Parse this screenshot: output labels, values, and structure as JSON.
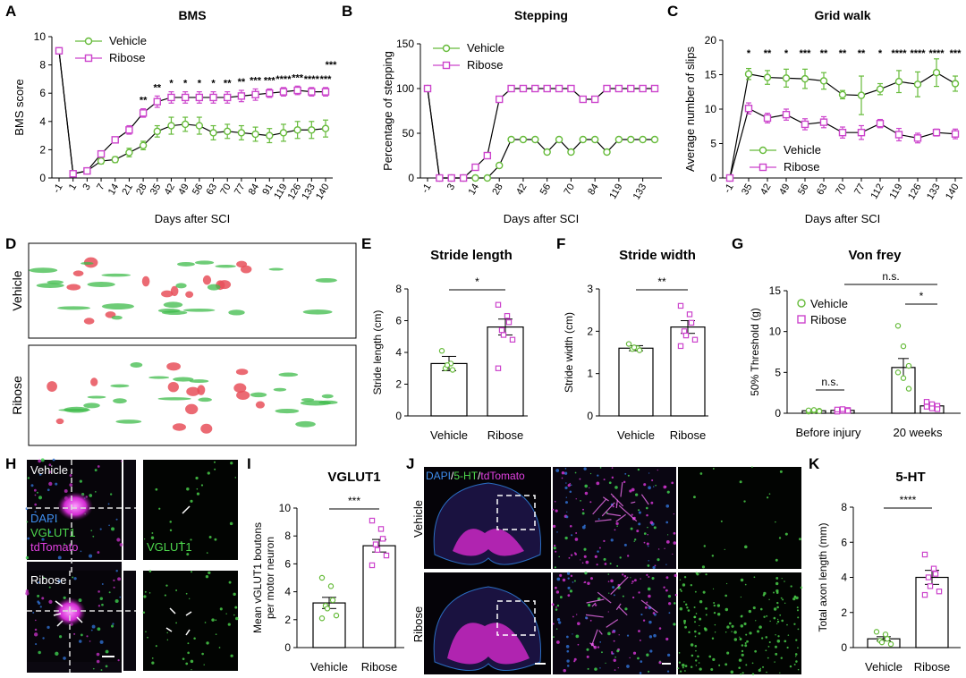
{
  "colors": {
    "vehicle": "#66bb3a",
    "ribose": "#cc44cc",
    "axis": "#000000",
    "dapi": "#2f7ed8",
    "vglut": "#4ed84e",
    "tdtomato": "#e040e0",
    "sht": "#4ed84e"
  },
  "panels": {
    "A": "A",
    "B": "B",
    "C": "C",
    "D": "D",
    "E": "E",
    "F": "F",
    "G": "G",
    "H": "H",
    "I": "I",
    "J": "J",
    "K": "K"
  },
  "chart_data": [
    {
      "id": "A",
      "type": "line",
      "title": "BMS",
      "xlabel": "Days after SCI",
      "ylabel": "BMS score",
      "ylim": [
        0,
        10
      ],
      "yticks": [
        "0",
        "2",
        "4",
        "6",
        "8",
        "10"
      ],
      "categories": [
        "-1",
        "1",
        "3",
        "7",
        "14",
        "21",
        "28",
        "35",
        "42",
        "49",
        "56",
        "63",
        "70",
        "77",
        "84",
        "91",
        "119",
        "126",
        "133",
        "140"
      ],
      "series": [
        {
          "name": "Vehicle",
          "values": [
            9,
            0.3,
            0.5,
            1.2,
            1.3,
            1.8,
            2.3,
            3.3,
            3.7,
            3.8,
            3.7,
            3.2,
            3.3,
            3.2,
            3.1,
            3.0,
            3.2,
            3.4,
            3.4,
            3.5
          ],
          "err": [
            0,
            0.1,
            0.1,
            0.2,
            0.2,
            0.3,
            0.3,
            0.4,
            0.6,
            0.5,
            0.6,
            0.5,
            0.5,
            0.5,
            0.5,
            0.5,
            0.6,
            0.6,
            0.6,
            0.6
          ]
        },
        {
          "name": "Ribose",
          "values": [
            9,
            0.3,
            0.5,
            1.7,
            2.7,
            3.4,
            4.6,
            5.4,
            5.7,
            5.7,
            5.7,
            5.7,
            5.7,
            5.8,
            5.9,
            6.0,
            6.1,
            6.2,
            6.1,
            6.1
          ],
          "err": [
            0,
            0.1,
            0.1,
            0.2,
            0.2,
            0.3,
            0.3,
            0.4,
            0.4,
            0.4,
            0.4,
            0.4,
            0.4,
            0.4,
            0.4,
            0.3,
            0.3,
            0.3,
            0.3,
            0.3
          ]
        }
      ],
      "significance": [
        "",
        "",
        "",
        "",
        "",
        "",
        "**",
        "**",
        "*",
        "*",
        "*",
        "*",
        "**",
        "**",
        "***",
        "***",
        "****",
        "***",
        "****",
        "***"
      ],
      "sig_extra": "***"
    },
    {
      "id": "B",
      "type": "line",
      "title": "Stepping",
      "xlabel": "Days after SCI",
      "ylabel": "Percentage of stepping",
      "ylim": [
        0,
        150
      ],
      "yticks": [
        "0",
        "50",
        "100",
        "150"
      ],
      "categories": [
        "-1",
        "1",
        "3",
        "7",
        "14",
        "21",
        "28",
        "35",
        "42",
        "49",
        "56",
        "63",
        "70",
        "77",
        "84",
        "91",
        "119",
        "126",
        "133",
        "140"
      ],
      "xticks": [
        "-1",
        "3",
        "14",
        "28",
        "42",
        "56",
        "70",
        "84",
        "119",
        "133"
      ],
      "xtick_index": [
        0,
        2,
        4,
        6,
        8,
        10,
        12,
        14,
        16,
        18
      ],
      "series": [
        {
          "name": "Vehicle",
          "values": [
            100,
            0,
            0,
            0,
            0,
            0,
            14,
            43,
            43,
            43,
            29,
            43,
            29,
            43,
            43,
            29,
            43,
            43,
            43,
            43
          ]
        },
        {
          "name": "Ribose",
          "values": [
            100,
            0,
            0,
            0,
            12,
            25,
            88,
            100,
            100,
            100,
            100,
            100,
            100,
            88,
            88,
            100,
            100,
            100,
            100,
            100
          ]
        }
      ]
    },
    {
      "id": "C",
      "type": "line",
      "title": "Grid walk",
      "xlabel": "Days after SCI",
      "ylabel": "Average number of slips",
      "ylim": [
        0,
        20
      ],
      "yticks": [
        "0",
        "5",
        "10",
        "15",
        "20"
      ],
      "categories": [
        "-1",
        "35",
        "42",
        "49",
        "56",
        "63",
        "70",
        "77",
        "112",
        "119",
        "126",
        "133",
        "140"
      ],
      "series": [
        {
          "name": "Vehicle",
          "values": [
            0,
            15.1,
            14.6,
            14.5,
            14.4,
            14.1,
            12.1,
            12.0,
            12.9,
            14.0,
            13.6,
            15.3,
            13.7
          ],
          "err": [
            0,
            0.8,
            1.0,
            1.3,
            1.4,
            1.2,
            0.6,
            2.8,
            0.8,
            1.6,
            1.8,
            2.0,
            1.1
          ]
        },
        {
          "name": "Ribose",
          "values": [
            0,
            10.1,
            8.7,
            9.2,
            7.8,
            8.1,
            6.6,
            6.6,
            7.9,
            6.3,
            5.8,
            6.6,
            6.4
          ],
          "err": [
            0,
            0.8,
            0.7,
            0.8,
            0.8,
            0.8,
            0.8,
            1.0,
            0.6,
            0.9,
            0.7,
            0.5,
            0.7
          ]
        }
      ],
      "significance": [
        "",
        "*",
        "**",
        "*",
        "***",
        "**",
        "**",
        "**",
        "*",
        "****",
        "****",
        "****",
        "***"
      ]
    },
    {
      "id": "E",
      "type": "bar",
      "title": "Stride length",
      "ylabel": "Stride length (cm)",
      "ylim": [
        0,
        8
      ],
      "yticks": [
        "0",
        "2",
        "4",
        "6",
        "8"
      ],
      "categories": [
        "Vehicle",
        "Ribose"
      ],
      "values": [
        3.3,
        5.6
      ],
      "err": [
        0.45,
        0.5
      ],
      "points": [
        [
          4.1,
          3.3,
          2.9,
          3.0,
          3.2
        ],
        [
          7.0,
          6.3,
          5.9,
          5.4,
          5.1,
          4.8,
          3.0
        ]
      ],
      "significance": "*"
    },
    {
      "id": "F",
      "type": "bar",
      "title": "Stride width",
      "ylabel": "Stride width (cm)",
      "ylim": [
        0,
        3
      ],
      "yticks": [
        "0",
        "1",
        "2",
        "3"
      ],
      "categories": [
        "Vehicle",
        "Ribose"
      ],
      "values": [
        1.6,
        2.1
      ],
      "err": [
        0.06,
        0.15
      ],
      "points": [
        [
          1.7,
          1.6,
          1.55,
          1.58,
          1.62
        ],
        [
          2.6,
          2.4,
          2.2,
          2.0,
          1.9,
          1.8,
          1.65
        ]
      ],
      "significance": "**"
    },
    {
      "id": "G",
      "type": "bar",
      "title": "Von frey",
      "ylabel": "50% Threshold (g)",
      "ylim": [
        0,
        15
      ],
      "yticks": [
        "0",
        "5",
        "10",
        "15"
      ],
      "categories": [
        "Before injury",
        "20 weeks"
      ],
      "series": [
        {
          "name": "Vehicle",
          "values": [
            0.3,
            5.6
          ],
          "err": [
            0.1,
            1.1
          ],
          "points": [
            [
              0.2,
              0.3,
              0.3,
              0.35,
              0.4,
              0.25
            ],
            [
              10.7,
              8.2,
              5.8,
              5.0,
              4.3,
              3.0
            ]
          ]
        },
        {
          "name": "Ribose",
          "values": [
            0.35,
            0.9
          ],
          "err": [
            0.1,
            0.25
          ],
          "points": [
            [
              0.2,
              0.3,
              0.4,
              0.45,
              0.5,
              0.3
            ],
            [
              1.4,
              1.1,
              0.9,
              0.8,
              0.6,
              0.5
            ]
          ]
        }
      ],
      "significance": [
        "n.s.",
        "*",
        "n.s."
      ]
    },
    {
      "id": "I",
      "type": "bar",
      "title": "VGLUT1",
      "ylabel_lines": [
        "Mean vGLUT1 boutons",
        "per motor neuron"
      ],
      "ylim": [
        0,
        10
      ],
      "yticks": [
        "0",
        "2",
        "4",
        "6",
        "8",
        "10"
      ],
      "categories": [
        "Vehicle",
        "Ribose"
      ],
      "values": [
        3.2,
        7.3
      ],
      "err": [
        0.4,
        0.45
      ],
      "points": [
        [
          5.0,
          4.4,
          3.4,
          3.0,
          2.8,
          2.3,
          2.1
        ],
        [
          9.1,
          8.5,
          7.8,
          7.4,
          7.0,
          6.6,
          5.9
        ]
      ],
      "significance": "***"
    },
    {
      "id": "K",
      "type": "bar",
      "title": "5-HT",
      "ylabel": "Total axon length (mm)",
      "ylim": [
        0,
        8
      ],
      "yticks": [
        "0",
        "2",
        "4",
        "6",
        "8"
      ],
      "categories": [
        "Vehicle",
        "Ribose"
      ],
      "values": [
        0.5,
        4.0
      ],
      "err": [
        0.12,
        0.4
      ],
      "points": [
        [
          0.9,
          0.75,
          0.5,
          0.4,
          0.3,
          0.2
        ],
        [
          5.3,
          4.5,
          4.2,
          4.0,
          3.5,
          3.2,
          3.0
        ]
      ],
      "significance": "****"
    }
  ],
  "images": {
    "D": {
      "vehicle": "Vehicle",
      "ribose": "Ribose"
    },
    "H": {
      "vehicle": "Vehicle",
      "ribose": "Ribose",
      "dapi": "DAPI",
      "vglut1": "VGLUT1",
      "tdtomato": "tdTomato",
      "vglut1_single": "VGLUT1"
    },
    "J": {
      "vehicle": "Vehicle",
      "ribose": "Ribose",
      "dapi": "DAPI",
      "sep": "/",
      "sht": "5-HT",
      "tdtomato": "tdTomato"
    }
  }
}
